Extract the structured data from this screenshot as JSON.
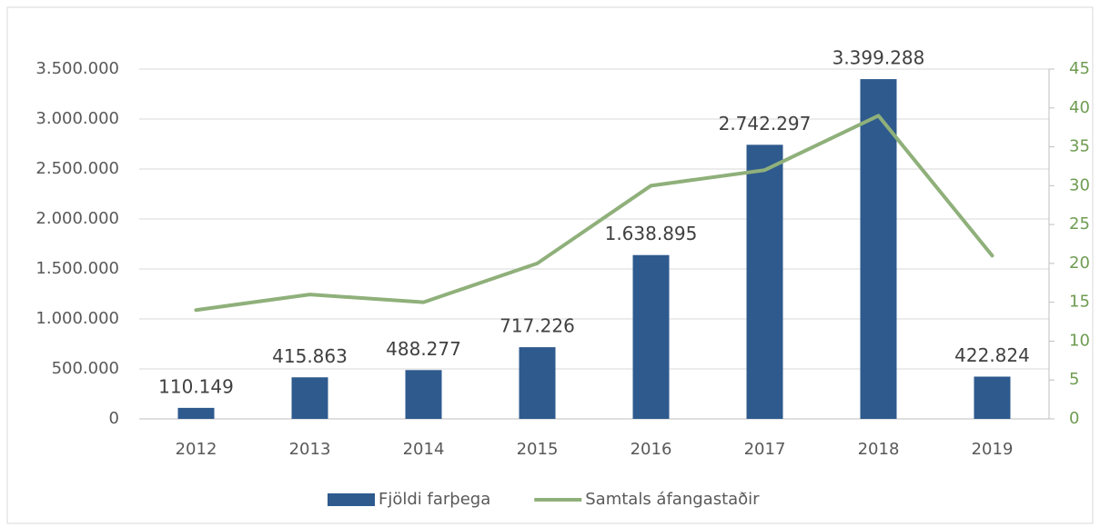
{
  "chart_data": {
    "type": "bar",
    "categories": [
      "2012",
      "2013",
      "2014",
      "2015",
      "2016",
      "2017",
      "2018",
      "2019"
    ],
    "series": [
      {
        "name": "Fjöldi farþega",
        "color": "#2e5a8e",
        "type": "bar",
        "values": [
          110149,
          415863,
          488277,
          717226,
          1638895,
          2742297,
          3399288,
          422824
        ],
        "value_labels": [
          "110.149",
          "415.863",
          "488.277",
          "717.226",
          "1.638.895",
          "2.742.297",
          "3.399.288",
          "422.824"
        ]
      },
      {
        "name": "Samtals áfangastaðir",
        "color": "#8fb07a",
        "type": "line",
        "axis": "y2",
        "values": [
          14,
          16,
          15,
          20,
          30,
          32,
          39,
          21
        ]
      }
    ],
    "ylim": [
      0,
      3500000
    ],
    "yticks": [
      0,
      {
        "value": 500000,
        "label": "500.000"
      },
      {
        "value": 1000000,
        "label": "1.000.000"
      },
      {
        "value": 1500000,
        "label": "1.500.000"
      },
      {
        "value": 2000000,
        "label": "2.000.000"
      },
      {
        "value": 2500000,
        "label": "2.500.000"
      },
      {
        "value": 3000000,
        "label": "3.000.000"
      },
      {
        "value": 3500000,
        "label": "3.500.000"
      }
    ],
    "y2lim": [
      0,
      45
    ],
    "y2ticks": [
      0,
      5,
      10,
      15,
      20,
      25,
      30,
      35,
      40,
      45
    ],
    "grid": true,
    "legend": "bottom"
  }
}
